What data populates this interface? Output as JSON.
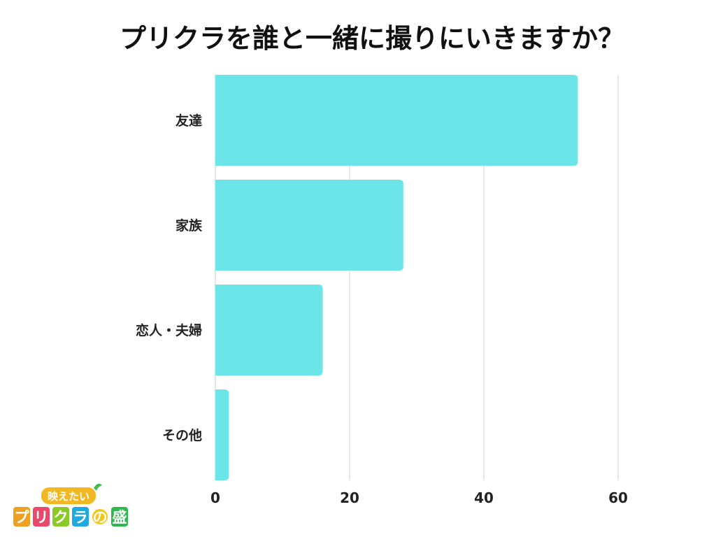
{
  "chart_data": {
    "type": "bar",
    "orientation": "horizontal",
    "title": "プリクラを誰と一緒に撮りにいきますか？",
    "categories": [
      "友達",
      "家族",
      "恋人・夫婦",
      "その他"
    ],
    "values": [
      54,
      28,
      16,
      2
    ],
    "xlim": [
      0,
      60
    ],
    "xticks": [
      0,
      20,
      40,
      60
    ],
    "xlabel": "",
    "ylabel": "",
    "grid": true,
    "bar_color": "#6ce5e8",
    "grid_color": "#d9d9d9"
  },
  "logo": {
    "top_text": "映えたい",
    "main_chars": [
      "プ",
      "リ",
      "ク",
      "ラ",
      "の",
      "盛"
    ],
    "colors": [
      "#f0a020",
      "#e8486a",
      "#8ac926",
      "#1fa9e0",
      "#f5c518",
      "#2db84d"
    ]
  }
}
